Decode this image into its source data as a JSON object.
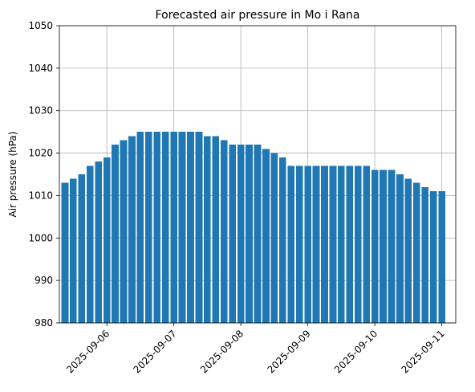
{
  "chart_data": {
    "type": "bar",
    "title": "Forecasted air pressure in Mo i Rana",
    "xlabel": "",
    "ylabel": "Air pressure (hPa)",
    "ylim": [
      980,
      1050
    ],
    "yticks": [
      980,
      990,
      1000,
      1010,
      1020,
      1030,
      1040,
      1050
    ],
    "xlim": [
      "2025-09-05T07:00",
      "2025-09-11T05:00"
    ],
    "xticks": [
      "2025-09-06",
      "2025-09-07",
      "2025-09-08",
      "2025-09-09",
      "2025-09-10",
      "2025-09-11"
    ],
    "grid": true,
    "color": "#1f77b4",
    "bar_width_hours": 2.5,
    "series": [
      {
        "x": [
          "2025-09-05T09:00",
          "2025-09-05T12:00",
          "2025-09-05T15:00",
          "2025-09-05T18:00",
          "2025-09-05T21:00",
          "2025-09-06T00:00",
          "2025-09-06T03:00",
          "2025-09-06T06:00",
          "2025-09-06T09:00",
          "2025-09-06T12:00",
          "2025-09-06T15:00",
          "2025-09-06T18:00",
          "2025-09-06T21:00",
          "2025-09-07T00:00",
          "2025-09-07T03:00",
          "2025-09-07T06:00",
          "2025-09-07T09:00",
          "2025-09-07T12:00",
          "2025-09-07T15:00",
          "2025-09-07T18:00",
          "2025-09-07T21:00",
          "2025-09-08T00:00",
          "2025-09-08T03:00",
          "2025-09-08T06:00",
          "2025-09-08T09:00",
          "2025-09-08T12:00",
          "2025-09-08T15:00",
          "2025-09-08T18:00",
          "2025-09-08T21:00",
          "2025-09-09T00:00",
          "2025-09-09T03:00",
          "2025-09-09T06:00",
          "2025-09-09T09:00",
          "2025-09-09T12:00",
          "2025-09-09T15:00",
          "2025-09-09T18:00",
          "2025-09-09T21:00",
          "2025-09-10T00:00",
          "2025-09-10T03:00",
          "2025-09-10T06:00",
          "2025-09-10T09:00",
          "2025-09-10T12:00",
          "2025-09-10T15:00",
          "2025-09-10T18:00",
          "2025-09-10T21:00",
          "2025-09-11T00:00"
        ],
        "values": [
          1013,
          1014,
          1015,
          1017,
          1018,
          1019,
          1022,
          1023,
          1024,
          1025,
          1025,
          1025,
          1025,
          1025,
          1025,
          1025,
          1025,
          1024,
          1024,
          1023,
          1022,
          1022,
          1022,
          1022,
          1021,
          1020,
          1019,
          1017,
          1017,
          1017,
          1017,
          1017,
          1017,
          1017,
          1017,
          1017,
          1017,
          1016,
          1016,
          1016,
          1015,
          1014,
          1013,
          1012,
          1011,
          1011
        ]
      }
    ]
  }
}
